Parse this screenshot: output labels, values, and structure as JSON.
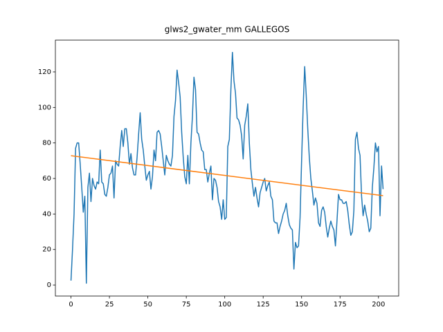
{
  "chart_data": {
    "type": "line",
    "title": "glws2_gwater_mm GALLEGOS",
    "x": [
      0,
      1,
      2,
      3,
      4,
      5,
      6,
      7,
      8,
      9,
      10,
      11,
      12,
      13,
      14,
      15,
      16,
      17,
      18,
      19,
      20,
      21,
      22,
      23,
      24,
      25,
      26,
      27,
      28,
      29,
      30,
      31,
      32,
      33,
      34,
      35,
      36,
      37,
      38,
      39,
      40,
      41,
      42,
      43,
      44,
      45,
      46,
      47,
      48,
      49,
      50,
      51,
      52,
      53,
      54,
      55,
      56,
      57,
      58,
      59,
      60,
      61,
      62,
      63,
      64,
      65,
      66,
      67,
      68,
      69,
      70,
      71,
      72,
      73,
      74,
      75,
      76,
      77,
      78,
      79,
      80,
      81,
      82,
      83,
      84,
      85,
      86,
      87,
      88,
      89,
      90,
      91,
      92,
      93,
      94,
      95,
      96,
      97,
      98,
      99,
      100,
      101,
      102,
      103,
      104,
      105,
      106,
      107,
      108,
      109,
      110,
      111,
      112,
      113,
      114,
      115,
      116,
      117,
      118,
      119,
      120,
      121,
      122,
      123,
      124,
      125,
      126,
      127,
      128,
      129,
      130,
      131,
      132,
      133,
      134,
      135,
      136,
      137,
      138,
      139,
      140,
      141,
      142,
      143,
      144,
      145,
      146,
      147,
      148,
      149,
      150,
      151,
      152,
      153,
      154,
      155,
      156,
      157,
      158,
      159,
      160,
      161,
      162,
      163,
      164,
      165,
      166,
      167,
      168,
      169,
      170,
      171,
      172,
      173,
      174,
      175,
      176,
      177,
      178,
      179,
      180,
      181,
      182,
      183,
      184,
      185,
      186,
      187,
      188,
      189,
      190,
      191,
      192,
      193,
      194,
      195,
      196,
      197,
      198,
      199,
      200,
      201,
      202,
      203
    ],
    "series": [
      {
        "color": "#1f77b4",
        "values": [
          2.5,
          20,
          40,
          77,
          80,
          80,
          68,
          55,
          41,
          50,
          1,
          55,
          63,
          47,
          60,
          56,
          54,
          58,
          57,
          76,
          58,
          57,
          51,
          50,
          55,
          62,
          63,
          67,
          49,
          70,
          68,
          67,
          78,
          87,
          78,
          88,
          88,
          80,
          68,
          74,
          66,
          62,
          62,
          72,
          85,
          97,
          82,
          76,
          67,
          59,
          62,
          64,
          54,
          61,
          76,
          70,
          86,
          87,
          85,
          78,
          70,
          62,
          73,
          70,
          68,
          67,
          73,
          95,
          104,
          121,
          114,
          106,
          86,
          72,
          61,
          57,
          73,
          57,
          80,
          95,
          117,
          110,
          86,
          85,
          80,
          76,
          75,
          65,
          65,
          58,
          63,
          67,
          48,
          60,
          59,
          55,
          47,
          44,
          37,
          48,
          37,
          38,
          78,
          82,
          110,
          131,
          115,
          108,
          94,
          93,
          90,
          84,
          71,
          90,
          95,
          102,
          80,
          65,
          57,
          50,
          55,
          49,
          44,
          52,
          55,
          58,
          60,
          53,
          56,
          58,
          50,
          48,
          36,
          35,
          35,
          29,
          33,
          36,
          40,
          42,
          46,
          39,
          34,
          32,
          31,
          9,
          24,
          21,
          22,
          38,
          70,
          100,
          123,
          107,
          88,
          72,
          60,
          53,
          45,
          49,
          46,
          35,
          33,
          42,
          44,
          41,
          33,
          27,
          32,
          36,
          33,
          31,
          22,
          36,
          51,
          48,
          48,
          46,
          46,
          47,
          42,
          34,
          28,
          30,
          42,
          82,
          86,
          77,
          73,
          50,
          39,
          45,
          40,
          36,
          30,
          32,
          55,
          66,
          80,
          75,
          78,
          39,
          67,
          54
        ]
      },
      {
        "color": "#ff7f0e",
        "x": [
          0,
          203
        ],
        "values": [
          72.8,
          50.3
        ]
      }
    ],
    "xlim": [
      -10.15,
      213.15
    ],
    "xticks": [
      0,
      25,
      50,
      75,
      100,
      125,
      150,
      175,
      200
    ],
    "ylim": [
      -6.2,
      137.9
    ],
    "yticks": [
      0,
      20,
      40,
      60,
      80,
      100,
      120
    ]
  }
}
